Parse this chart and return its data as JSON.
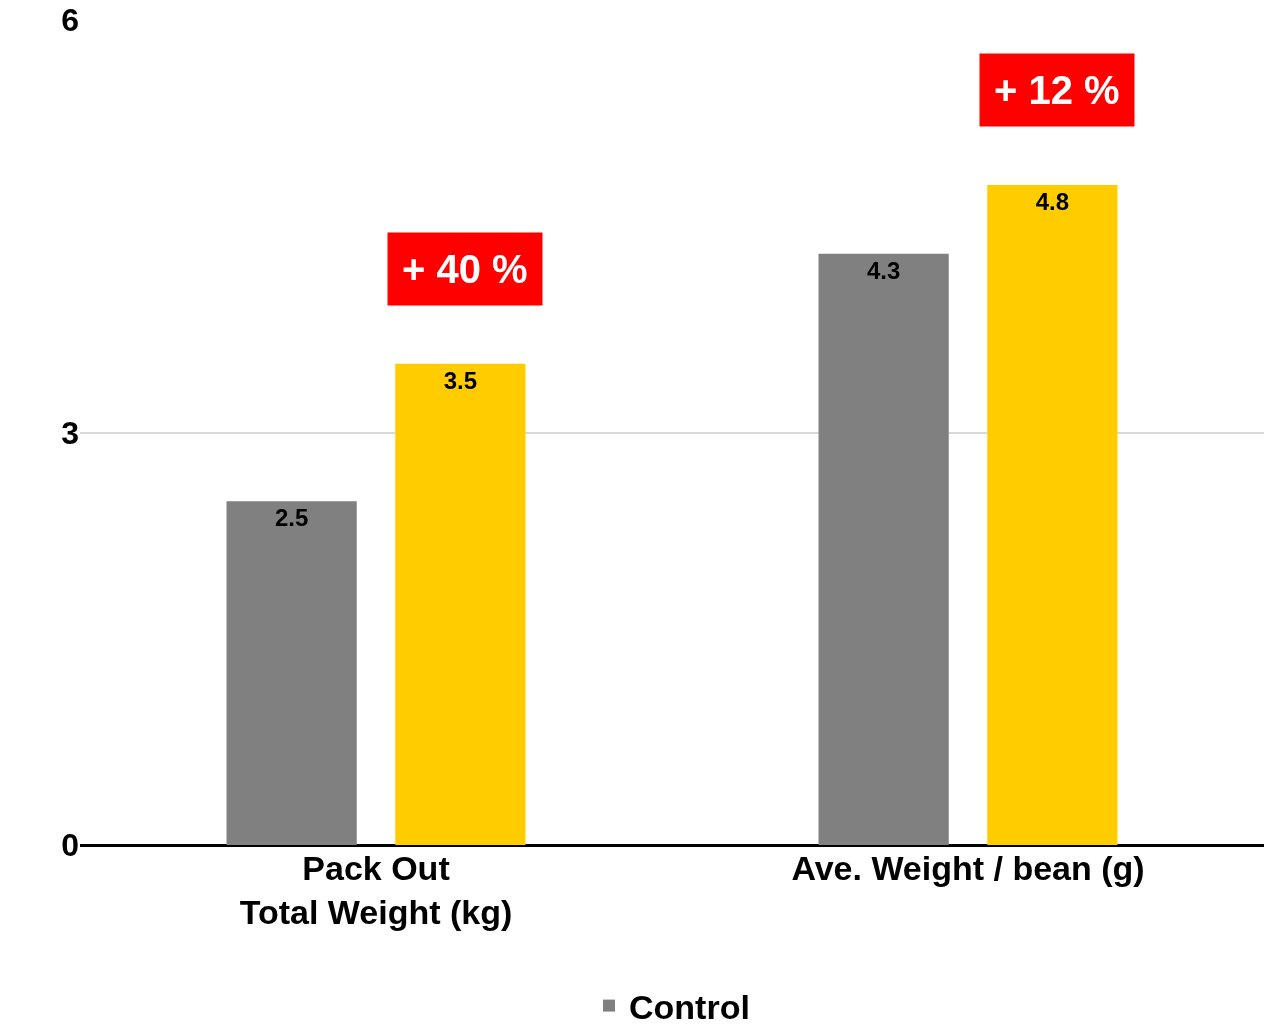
{
  "chart_data": {
    "type": "bar",
    "categories": [
      "Pack Out\nTotal Weight (kg)",
      "Ave. Weight / bean (g)"
    ],
    "series": [
      {
        "name": "Control",
        "color": "#808080",
        "values": [
          2.5,
          4.3
        ]
      },
      {
        "color": "#ffcc00",
        "values": [
          3.5,
          4.8
        ]
      }
    ],
    "data_labels": true,
    "ylim": [
      0,
      6
    ],
    "yticks": [
      0,
      3,
      6
    ],
    "grid": "y",
    "legend": "bottom",
    "annotations": [
      "+ 40 %",
      "+ 12 %"
    ]
  }
}
